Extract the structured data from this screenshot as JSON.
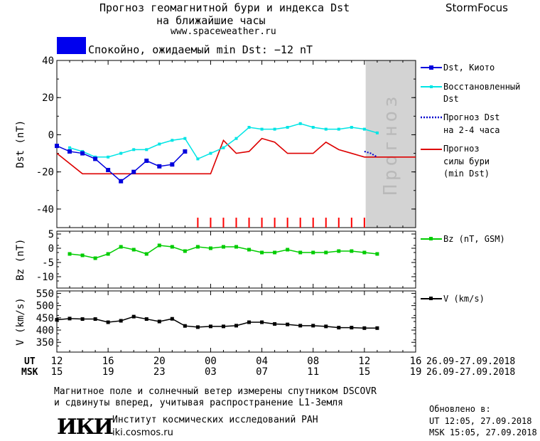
{
  "header": {
    "title_line1": "Прогноз геомагнитной бури и индекса Dst",
    "title_line2": "на ближайшие часы",
    "site": "www.spaceweather.ru",
    "brand": "StormFocus"
  },
  "status": {
    "text": "Спокойно, ожидаемый min Dst: −12 nT",
    "color": "#0000ee"
  },
  "colors": {
    "dst_kyoto": "#0000dd",
    "dst_restored": "#00e5e5",
    "forecast_dst": "#0000cc",
    "storm_forecast": "#dd0000",
    "bz": "#00cc00",
    "speed": "#000000",
    "forecast_shade": "#d3d3d3",
    "tick_red": "#ff0000"
  },
  "legend": {
    "dst_kyoto": "Dst, Киото",
    "restored_line1": "Восстановленный",
    "restored_line2": "Dst",
    "fc_line1": "Прогноз Dst",
    "fc_line2": "на 2-4 часа",
    "storm_line1": "Прогноз",
    "storm_line2": "силы бури",
    "storm_line3": "(min Dst)",
    "bz": "Bz (nT, GSM)",
    "speed": "V (km/s)"
  },
  "forecast_zone_label": "Прогноз",
  "axis": {
    "ut_label": "UT",
    "msk_label": "MSK",
    "ut_ticks": [
      "12",
      "16",
      "20",
      "00",
      "04",
      "08",
      "12",
      "16"
    ],
    "msk_ticks": [
      "15",
      "19",
      "23",
      "03",
      "07",
      "11",
      "15",
      "19"
    ],
    "date_range_ut": "26.09-27.09.2018",
    "date_range_msk": "26.09-27.09.2018"
  },
  "chart_data": [
    {
      "type": "line",
      "ylabel": "Dst (nT)",
      "ylim": [
        -50,
        40
      ],
      "yticks": [
        40,
        20,
        0,
        -20,
        -40
      ],
      "x_unit": "hours since 26.09.2018 12:00 UT",
      "xlim": [
        0,
        28
      ],
      "forecast_region": [
        24.1,
        28
      ],
      "series": [
        {
          "name": "Dst, Киото",
          "x": [
            0,
            1,
            2,
            3,
            4,
            5,
            6,
            7,
            8,
            9,
            10
          ],
          "y": [
            -6,
            -9,
            -10,
            -13,
            -19,
            -25,
            -20,
            -14,
            -17,
            -16,
            -9
          ]
        },
        {
          "name": "Восстановленный Dst",
          "x": [
            1,
            2,
            3,
            4,
            5,
            6,
            7,
            8,
            9,
            10,
            11,
            12,
            13,
            14,
            15,
            16,
            17,
            18,
            19,
            20,
            21,
            22,
            23,
            24,
            25
          ],
          "y": [
            -7,
            -9,
            -12,
            -12,
            -10,
            -8,
            -8,
            -5,
            -3,
            -2,
            -13,
            -10,
            -7,
            -2,
            4,
            3,
            3,
            4,
            6,
            4,
            3,
            3,
            4,
            3,
            1
          ]
        },
        {
          "name": "Прогноз Dst на 2-4 часа",
          "x": [
            24,
            24.5,
            25
          ],
          "y": [
            -9,
            -10,
            -12
          ]
        },
        {
          "name": "Прогноз силы бури (min Dst)",
          "x": [
            0,
            2,
            3,
            12,
            13,
            14,
            15,
            16,
            17,
            18,
            19,
            20,
            21,
            22,
            23,
            24,
            28
          ],
          "y": [
            -10,
            -21,
            -21,
            -21,
            -3,
            -10,
            -9,
            -2,
            -4,
            -10,
            -10,
            -10,
            -4,
            -8,
            -10,
            -12,
            -12
          ]
        }
      ],
      "storm_ticks_x": [
        11,
        12,
        13,
        14,
        15,
        16,
        17,
        18,
        19,
        20,
        21,
        22,
        23,
        24
      ]
    },
    {
      "type": "line",
      "ylabel": "Bz (nT)",
      "ylim": [
        -14,
        6
      ],
      "yticks": [
        5,
        0,
        -5,
        -10
      ],
      "series": [
        {
          "name": "Bz (nT, GSM)",
          "x": [
            1,
            2,
            3,
            4,
            5,
            6,
            7,
            8,
            9,
            10,
            11,
            12,
            13,
            14,
            15,
            16,
            17,
            18,
            19,
            20,
            21,
            22,
            23,
            24,
            25
          ],
          "y": [
            -2,
            -2.5,
            -3.5,
            -2,
            0.5,
            -0.5,
            -2,
            1,
            0.5,
            -1,
            0.5,
            0,
            0.5,
            0.5,
            -0.5,
            -1.5,
            -1.5,
            -0.5,
            -1.5,
            -1.5,
            -1.5,
            -1,
            -1,
            -1.5,
            -2
          ]
        }
      ]
    },
    {
      "type": "line",
      "ylabel": "V (km/s)",
      "ylim": [
        310,
        560
      ],
      "yticks": [
        550,
        500,
        450,
        400,
        350
      ],
      "series": [
        {
          "name": "V (km/s)",
          "x": [
            0,
            1,
            2,
            3,
            4,
            5,
            6,
            7,
            8,
            9,
            10,
            11,
            12,
            13,
            14,
            15,
            16,
            17,
            18,
            19,
            20,
            21,
            22,
            23,
            24,
            25
          ],
          "y": [
            442,
            447,
            445,
            445,
            432,
            438,
            455,
            445,
            435,
            446,
            417,
            412,
            415,
            415,
            418,
            432,
            432,
            425,
            423,
            418,
            418,
            415,
            410,
            410,
            408,
            408
          ]
        }
      ]
    }
  ],
  "footer": {
    "note_line1": "Магнитное поле и солнечный ветер измерены спутником DSCOVR",
    "note_line2": "и сдвинуты вперед, учитывая распространение L1-Земля",
    "logo": "ИКИ",
    "institute": "Институт космических исследований РАН",
    "institute_site": "iki.cosmos.ru",
    "updated_label": "Обновлено в:",
    "updated_ut": "UT  12:05, 27.09.2018",
    "updated_msk": "MSK 15:05, 27.09.2018"
  }
}
